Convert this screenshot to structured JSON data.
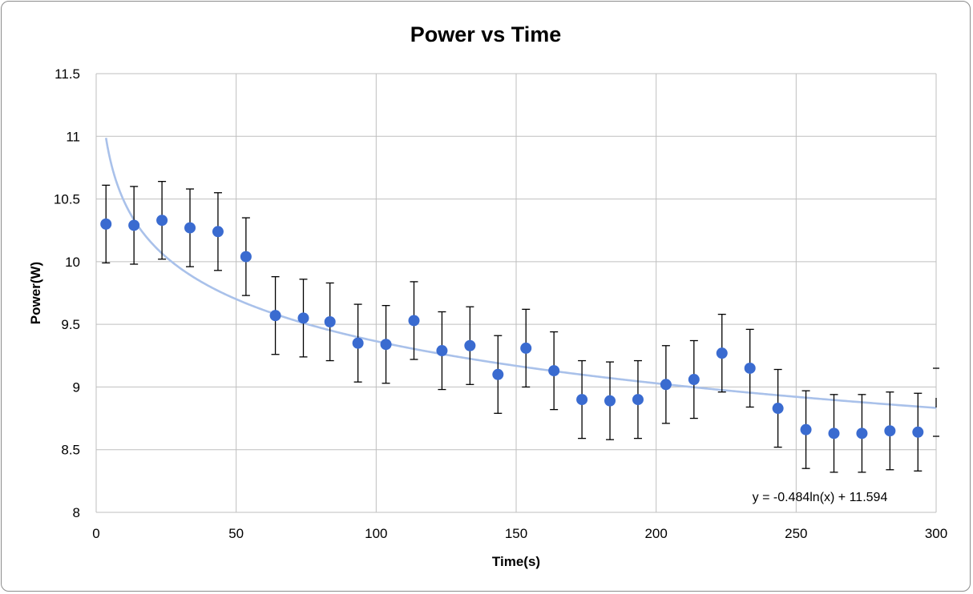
{
  "chart_data": {
    "type": "scatter",
    "title": "Power vs Time",
    "xlabel": "Time(s)",
    "ylabel": "Power(W)",
    "xlim": [
      0,
      300
    ],
    "ylim": [
      8,
      11.5
    ],
    "xticks": [
      "0",
      "50",
      "100",
      "150",
      "200",
      "250",
      "300"
    ],
    "yticks": [
      "8",
      "8.5",
      "9",
      "9.5",
      "10",
      "10.5",
      "11",
      "11.5"
    ],
    "grid": true,
    "marker_color": "#3a6bd0",
    "error_bar_color": "#000000",
    "trend_color": "#a9c1ea",
    "gridline_color": "#bfbfbf",
    "series": [
      {
        "x": [
          3.5,
          13.5,
          23.5,
          33.5,
          43.5,
          53.5,
          64,
          74,
          83.5,
          93.5,
          103.5,
          113.5,
          123.5,
          133.5,
          143.5,
          153.5,
          163.5,
          173.5,
          183.5,
          193.5,
          203.5,
          213.5,
          223.5,
          233.5,
          243.5,
          253.5,
          263.5,
          273.5,
          283.5,
          293.5
        ],
        "y": [
          10.3,
          10.29,
          10.33,
          10.27,
          10.24,
          10.04,
          9.57,
          9.55,
          9.52,
          9.35,
          9.34,
          9.53,
          9.29,
          9.33,
          9.1,
          9.31,
          9.13,
          8.9,
          8.89,
          8.9,
          9.02,
          9.06,
          9.27,
          9.15,
          8.83,
          8.66,
          8.63,
          8.63,
          8.65,
          8.64
        ],
        "error": 0.31
      }
    ],
    "trendline": {
      "type": "logarithmic",
      "a": -0.484,
      "b": 11.594,
      "equation": "y = -0.484ln(x) + 11.594"
    }
  }
}
